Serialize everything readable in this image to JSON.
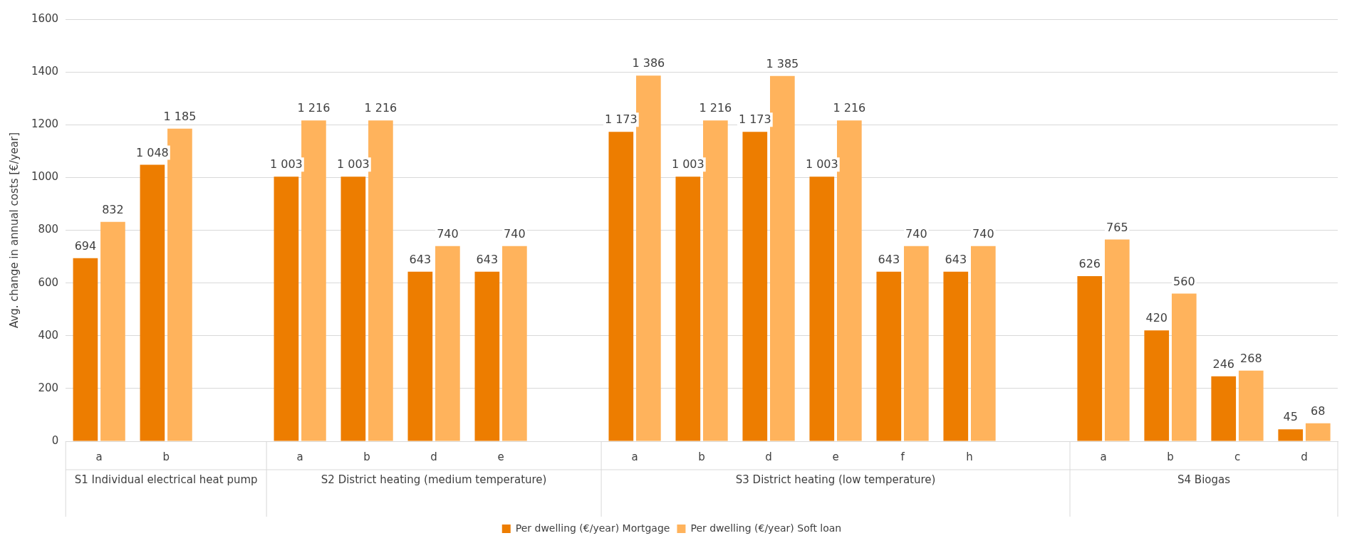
{
  "chart_data": {
    "type": "bar",
    "ylabel": "Avg. change in annual costs [€/year]",
    "categories": [
      "a",
      "b",
      null,
      "a",
      "b",
      "d",
      "e",
      null,
      "a",
      "b",
      "d",
      "e",
      "f",
      "h",
      null,
      "a",
      "b",
      "c",
      "d"
    ],
    "annotations": [
      "S1 Individual electrical heat pump",
      "S2 District heating (medium temperature)",
      "S3 District heating (low temperature)",
      "S4 Biogas"
    ],
    "series": [
      {
        "name": "Per dwelling (€/year) Mortgage",
        "color": "#ed7d00",
        "values": [
          694,
          1048,
          null,
          1003,
          1003,
          643,
          643,
          null,
          1173,
          1003,
          1173,
          1003,
          643,
          643,
          null,
          626,
          420,
          246,
          45
        ],
        "value_labels": [
          "694",
          "1 048",
          null,
          "1 003",
          "1 003",
          "643",
          "643",
          null,
          "1 173",
          "1 003",
          "1 173",
          "1 003",
          "643",
          "643",
          null,
          "626",
          "420",
          "246",
          "45"
        ]
      },
      {
        "name": "Per dwelling (€/year) Soft loan",
        "color": "#ffb35c",
        "values": [
          832,
          1185,
          null,
          1216,
          1216,
          740,
          740,
          null,
          1386,
          1216,
          1385,
          1216,
          740,
          740,
          null,
          765,
          560,
          268,
          68
        ],
        "value_labels": [
          "832",
          "1 185",
          null,
          "1 216",
          "1 216",
          "740",
          "740",
          null,
          "1 386",
          "1 216",
          "1 385",
          "1 216",
          "740",
          "740",
          null,
          "765",
          "560",
          "268",
          "68"
        ]
      }
    ],
    "ylim": [
      0,
      1600
    ],
    "yticks": [
      0,
      200,
      400,
      600,
      800,
      1000,
      1200,
      1400,
      1600
    ],
    "grid": "y",
    "legend": "bottom"
  }
}
